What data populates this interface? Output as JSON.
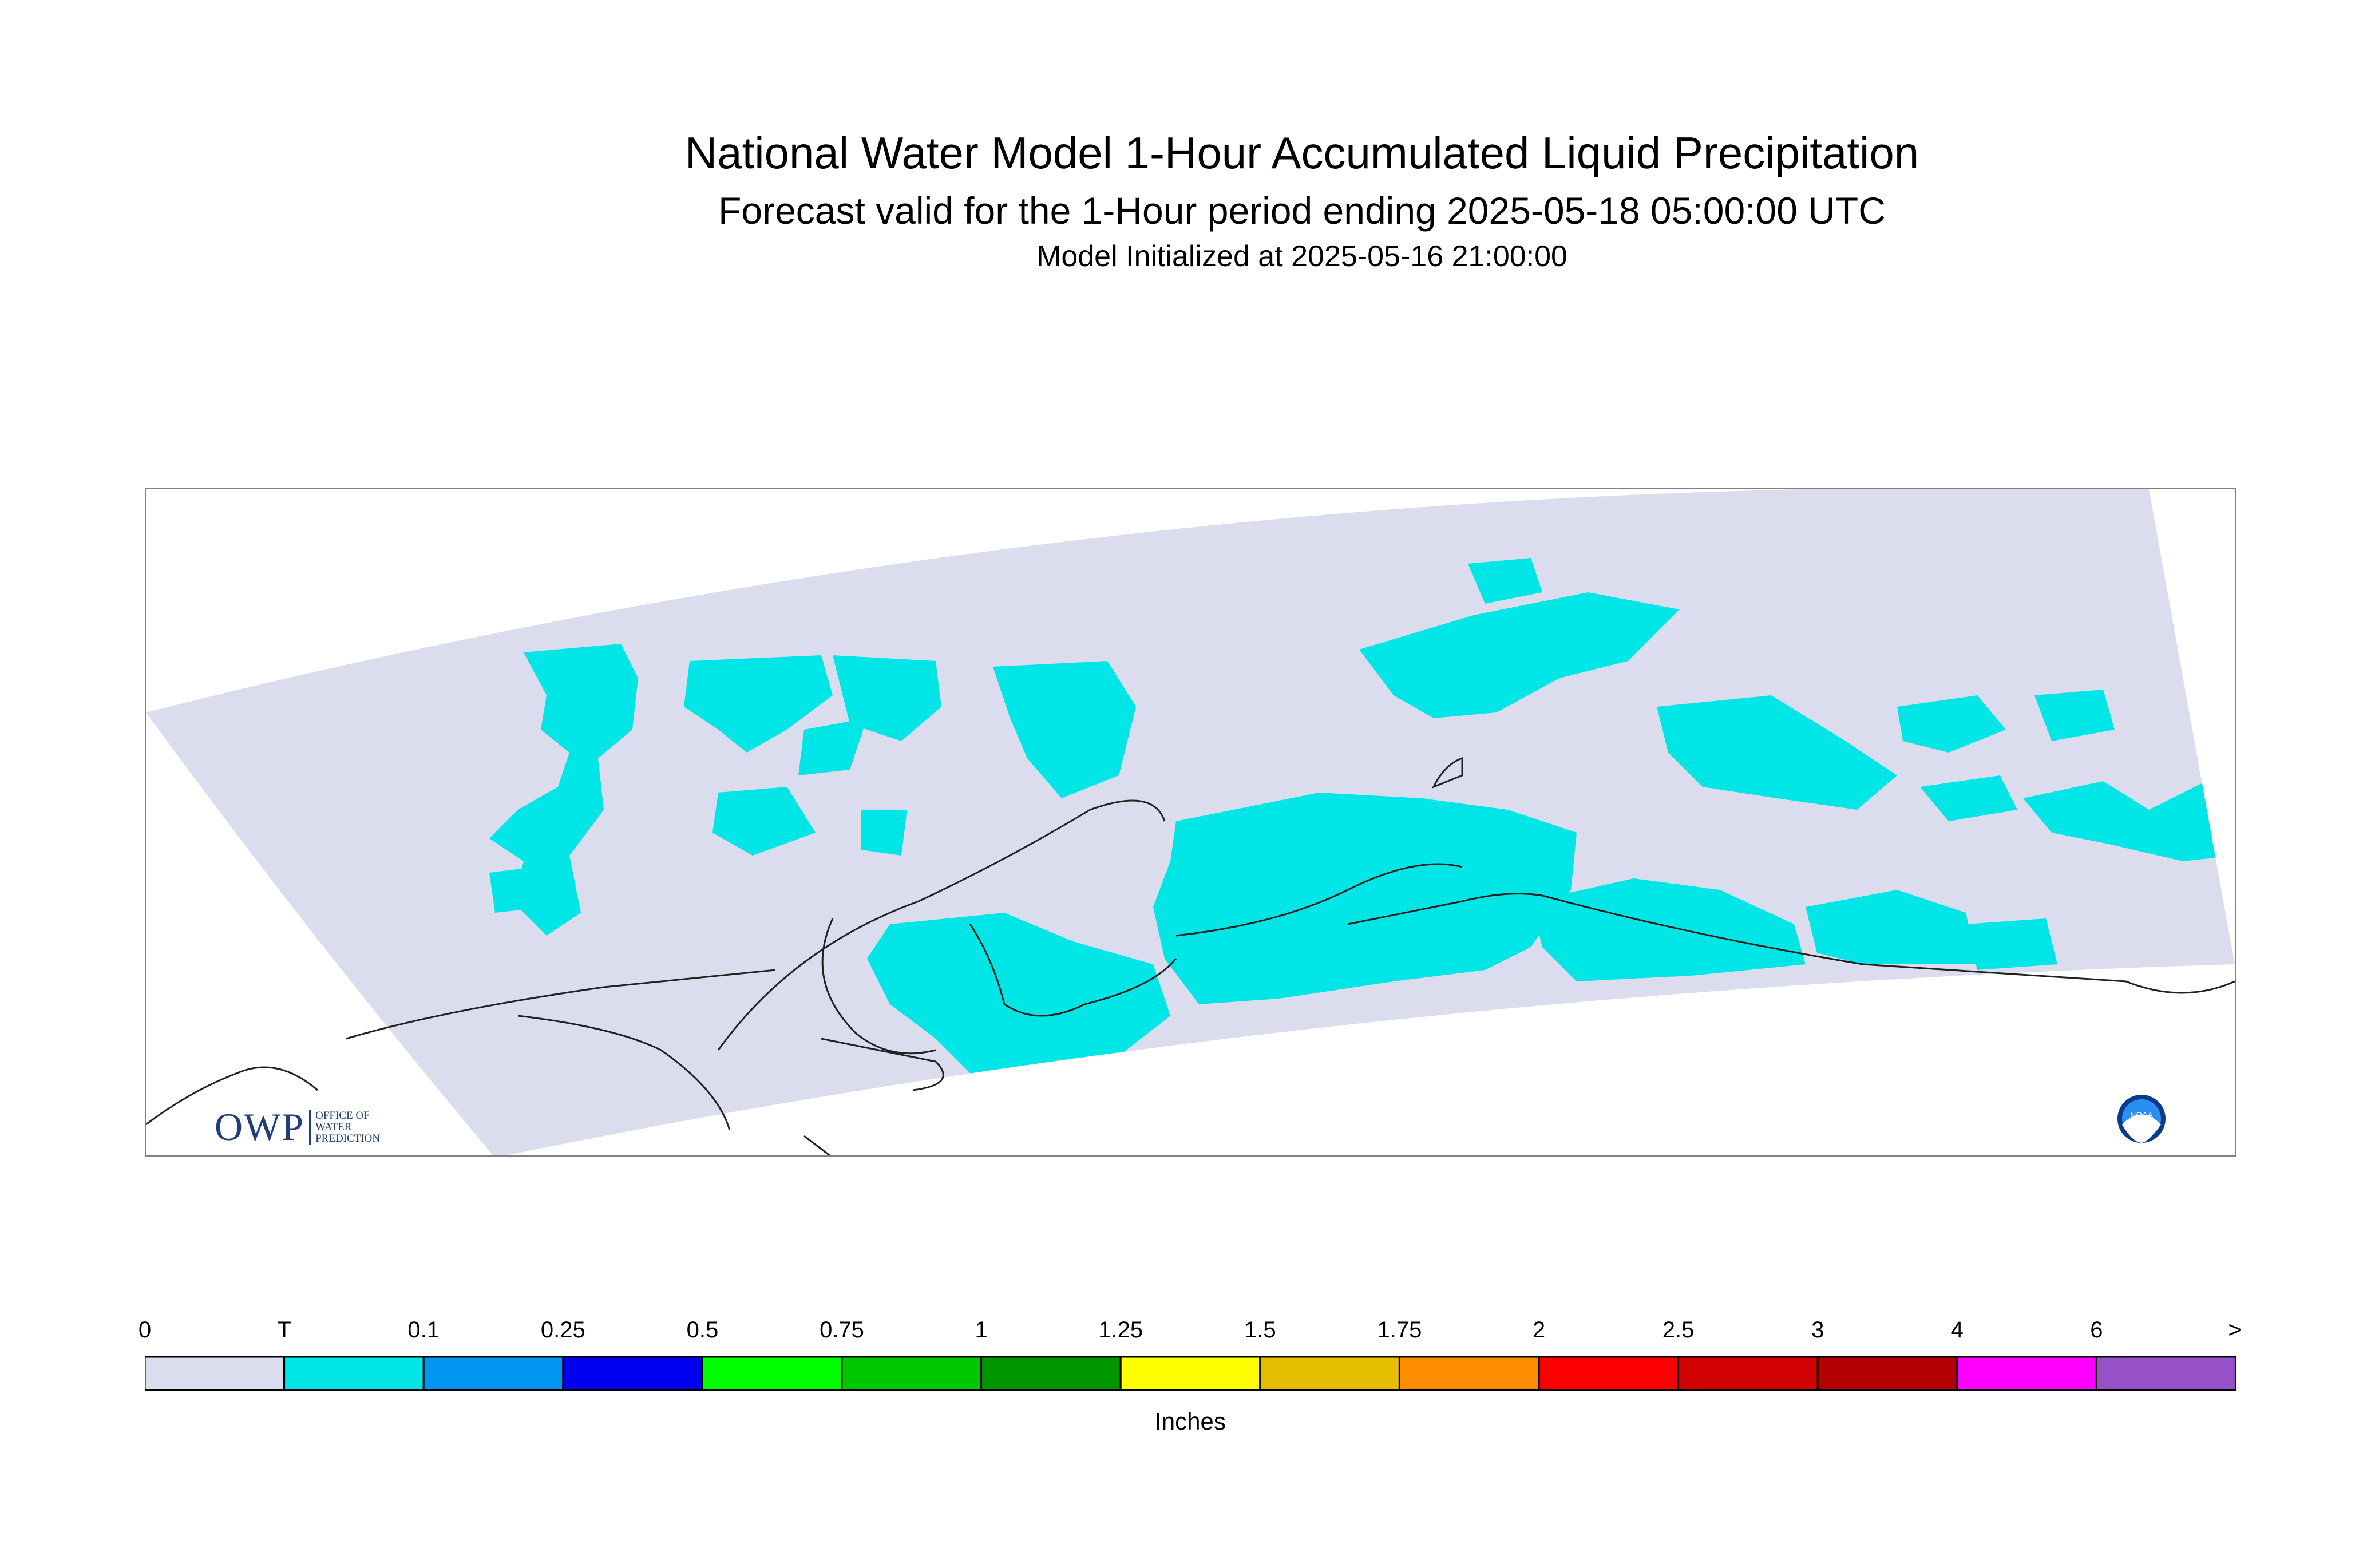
{
  "header": {
    "title": "National Water Model 1-Hour Accumulated Liquid Precipitation",
    "subtitle": "Forecast valid for the 1-Hour period ending 2025-05-18 05:00:00 UTC",
    "init": "Model Initialized at 2025-05-16 21:00:00"
  },
  "logos": {
    "owp_text": "OWP",
    "owp_line1": "OFFICE OF",
    "owp_line2": "WATER",
    "owp_line3": "PREDICTION",
    "noaa_text": "NOAA"
  },
  "legend": {
    "units": "Inches",
    "ticks": [
      "0",
      "T",
      "0.1",
      "0.25",
      "0.5",
      "0.75",
      "1",
      "1.25",
      "1.5",
      "1.75",
      "2",
      "2.5",
      "3",
      "4",
      "6",
      ">"
    ],
    "colors": [
      "#dcdcef",
      "#00e6e6",
      "#0096f0",
      "#0000f0",
      "#00ff00",
      "#00c800",
      "#009600",
      "#ffff00",
      "#e6be00",
      "#ff8c00",
      "#ff0000",
      "#d20000",
      "#b40000",
      "#ff00ff",
      "#9650c8"
    ]
  },
  "map": {
    "domain_color": "#dcdcef",
    "trace_color": "#00e6e6",
    "coast_color": "#222222"
  }
}
